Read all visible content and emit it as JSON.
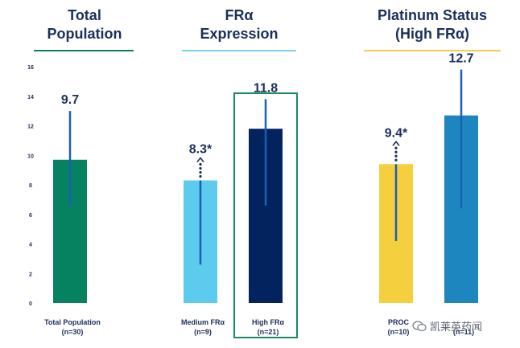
{
  "headers": [
    {
      "line1": "Total",
      "line2": "Population",
      "rule_color": "#0a7f5e"
    },
    {
      "line1": "FRα",
      "line2": "Expression",
      "rule_color": "#7fd0ea"
    },
    {
      "line1": "Platinum Status",
      "line2": "(High FRα)",
      "rule_color": "#f2d04b"
    }
  ],
  "watermark": "凯莱英药闻",
  "chart_data": {
    "type": "bar",
    "ylim": [
      0,
      16
    ],
    "yticks": [
      0,
      2,
      4,
      6,
      8,
      10,
      12,
      14,
      16
    ],
    "grid": false,
    "categories": [
      {
        "line1": "Total Population",
        "line2": "(n=30)"
      },
      {
        "line1": "Medium FRα",
        "line2": "(n=9)"
      },
      {
        "line1": "High FRα",
        "line2": "(n=21)"
      },
      {
        "line1": "PROC",
        "line2": "(n=10)"
      },
      {
        "line1": "",
        "line2": "(n=11)"
      }
    ],
    "values": [
      9.7,
      8.3,
      11.8,
      9.4,
      12.7
    ],
    "value_labels": [
      "9.7",
      "8.3*",
      "11.8",
      "9.4*",
      "12.7"
    ],
    "error_low": [
      6.6,
      2.6,
      6.6,
      4.2,
      6.4
    ],
    "error_high": [
      13.0,
      null,
      13.8,
      null,
      15.8
    ],
    "colors": [
      "#078260",
      "#5dcbed",
      "#03235e",
      "#f5cf3d",
      "#1d86be"
    ],
    "open_upper": [
      false,
      true,
      false,
      true,
      false
    ],
    "highlighted": [
      false,
      false,
      true,
      false,
      false
    ],
    "highlight_color": "#1a8a66"
  }
}
